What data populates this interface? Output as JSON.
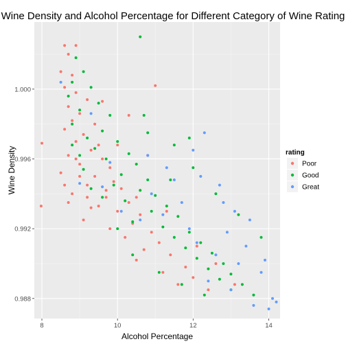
{
  "chart_data": {
    "type": "scatter",
    "title": "Wine Density and Alcohol Percentage for Different Category of Wine Rating",
    "xlabel": "Alcohol Percentage",
    "ylabel": "Wine Density",
    "xlim": [
      7.8,
      14.3
    ],
    "ylim": [
      0.98685,
      1.00385
    ],
    "x_ticks": [
      8,
      10,
      12,
      14
    ],
    "x_tick_labels": [
      "8",
      "10",
      "12",
      "14"
    ],
    "y_ticks": [
      0.988,
      0.992,
      0.996,
      1.0
    ],
    "y_tick_labels": [
      "0.988",
      "0.992",
      "0.996",
      "1.000"
    ],
    "grid": true,
    "legend": {
      "title": "rating",
      "position": "right"
    },
    "series": [
      {
        "name": "Poor",
        "color": "#F8766D",
        "points": [
          [
            8.6,
            1.0025
          ],
          [
            8.9,
            1.0025
          ],
          [
            8.7,
            1.002
          ],
          [
            8.5,
            1.001
          ],
          [
            8.8,
            1.0008
          ],
          [
            8.6,
            1.0001
          ],
          [
            8.9,
            0.9998
          ],
          [
            9.2,
            0.9994
          ],
          [
            8.7,
            0.999
          ],
          [
            9.0,
            0.9986
          ],
          [
            8.8,
            0.9982
          ],
          [
            9.4,
            0.998
          ],
          [
            8.6,
            0.9977
          ],
          [
            9.1,
            0.9974
          ],
          [
            8.9,
            0.997
          ],
          [
            9.5,
            0.9968
          ],
          [
            9.3,
            0.9965
          ],
          [
            8.7,
            0.9962
          ],
          [
            9.6,
            0.996
          ],
          [
            9.0,
            0.9957
          ],
          [
            9.8,
            0.9955
          ],
          [
            8.5,
            0.9952
          ],
          [
            9.4,
            0.995
          ],
          [
            9.9,
            0.9947
          ],
          [
            9.2,
            0.9945
          ],
          [
            10.1,
            0.9943
          ],
          [
            8.8,
            0.994
          ],
          [
            9.7,
            0.9938
          ],
          [
            10.3,
            0.9935
          ],
          [
            9.5,
            0.9933
          ],
          [
            10.0,
            0.993
          ],
          [
            10.6,
            0.9928
          ],
          [
            9.1,
            0.9925
          ],
          [
            10.4,
            0.9923
          ],
          [
            9.8,
            0.992
          ],
          [
            10.9,
            0.9918
          ],
          [
            10.2,
            0.9915
          ],
          [
            11.1,
            0.9912
          ],
          [
            10.7,
            0.9908
          ],
          [
            11.4,
            0.9905
          ],
          [
            10.5,
            0.9902
          ],
          [
            11.8,
            0.9898
          ],
          [
            11.2,
            0.9895
          ],
          [
            12.0,
            0.9892
          ],
          [
            11.6,
            0.9888
          ],
          [
            12.4,
            0.9885
          ],
          [
            8.0,
            0.9969
          ],
          [
            7.98,
            0.9933
          ],
          [
            8.7,
            0.9935
          ],
          [
            9.3,
            0.9932
          ],
          [
            10.0,
            0.9968
          ],
          [
            10.8,
            0.9962
          ],
          [
            11.0,
            1.0002
          ],
          [
            9.6,
            0.9993
          ],
          [
            10.3,
            0.9985
          ],
          [
            9.0,
            0.995
          ],
          [
            9.7,
            0.9942
          ],
          [
            10.5,
            0.9938
          ],
          [
            11.3,
            0.993
          ],
          [
            12.1,
            0.991
          ],
          [
            12.6,
            0.99
          ],
          [
            13.1,
            0.9888
          ],
          [
            8.9,
            0.996
          ],
          [
            9.2,
            0.9938
          ],
          [
            8.6,
            0.9945
          ]
        ]
      },
      {
        "name": "Good",
        "color": "#00BA38",
        "points": [
          [
            10.6,
            1.003
          ],
          [
            8.9,
            1.0018
          ],
          [
            9.1,
            1.001
          ],
          [
            8.8,
            1.0004
          ],
          [
            9.3,
            1.0001
          ],
          [
            8.7,
            0.9996
          ],
          [
            9.5,
            0.9992
          ],
          [
            9.0,
            0.9988
          ],
          [
            9.8,
            0.9985
          ],
          [
            8.8,
            0.998
          ],
          [
            9.6,
            0.9976
          ],
          [
            9.2,
            0.9972
          ],
          [
            10.0,
            0.997
          ],
          [
            9.4,
            0.9966
          ],
          [
            10.3,
            0.9963
          ],
          [
            9.7,
            0.996
          ],
          [
            10.5,
            0.9957
          ],
          [
            9.1,
            0.9954
          ],
          [
            10.1,
            0.9951
          ],
          [
            10.8,
            0.9948
          ],
          [
            9.9,
            0.9945
          ],
          [
            10.6,
            0.9942
          ],
          [
            11.0,
            0.9939
          ],
          [
            10.2,
            0.9936
          ],
          [
            11.3,
            0.9933
          ],
          [
            10.9,
            0.993
          ],
          [
            11.6,
            0.9927
          ],
          [
            10.4,
            0.9924
          ],
          [
            11.2,
            0.9921
          ],
          [
            11.9,
            0.9918
          ],
          [
            11.5,
            0.9915
          ],
          [
            12.2,
            0.9912
          ],
          [
            11.8,
            0.9909
          ],
          [
            12.5,
            0.9906
          ],
          [
            12.1,
            0.9903
          ],
          [
            12.8,
            0.99
          ],
          [
            12.4,
            0.9897
          ],
          [
            13.0,
            0.9894
          ],
          [
            12.7,
            0.9891
          ],
          [
            13.3,
            0.9888
          ],
          [
            13.0,
            0.9885
          ],
          [
            13.6,
            0.9882
          ],
          [
            11.9,
            0.9972
          ],
          [
            11.5,
            0.9968
          ],
          [
            10.8,
            0.9975
          ],
          [
            12.0,
            0.9955
          ],
          [
            12.6,
            0.994
          ],
          [
            13.2,
            0.9928
          ],
          [
            13.8,
            0.9915
          ],
          [
            9.3,
            0.9943
          ],
          [
            9.6,
            0.9938
          ],
          [
            10.0,
            0.992
          ],
          [
            10.4,
            0.9905
          ],
          [
            11.1,
            0.9895
          ],
          [
            11.7,
            0.9888
          ],
          [
            12.3,
            0.9882
          ],
          [
            8.8,
            0.9968
          ],
          [
            9.0,
            0.9962
          ],
          [
            10.7,
            0.9985
          ],
          [
            11.4,
            0.9948
          ]
        ]
      },
      {
        "name": "Great",
        "color": "#619CFF",
        "points": [
          [
            8.5,
            1.0004
          ],
          [
            9.3,
            0.9986
          ],
          [
            10.8,
            0.9962
          ],
          [
            11.3,
            0.9955
          ],
          [
            12.2,
            0.995
          ],
          [
            12.7,
            0.9945
          ],
          [
            13.1,
            0.993
          ],
          [
            13.5,
            0.9925
          ],
          [
            12.9,
            0.9918
          ],
          [
            13.4,
            0.991
          ],
          [
            12.1,
            0.9912
          ],
          [
            12.6,
            0.9905
          ],
          [
            13.2,
            0.99
          ],
          [
            13.8,
            0.9895
          ],
          [
            14.1,
            0.988
          ],
          [
            14.0,
            0.9874
          ],
          [
            13.6,
            0.9876
          ],
          [
            12.4,
            0.989
          ],
          [
            11.7,
            0.9935
          ],
          [
            11.2,
            0.9928
          ],
          [
            10.6,
            0.9925
          ],
          [
            10.1,
            0.993
          ],
          [
            9.6,
            0.9944
          ],
          [
            9.0,
            0.9946
          ],
          [
            12.0,
            0.9965
          ],
          [
            11.5,
            0.9948
          ],
          [
            12.8,
            0.9935
          ],
          [
            13.9,
            0.9902
          ],
          [
            14.2,
            0.9878
          ],
          [
            12.3,
            0.9975
          ],
          [
            10.9,
            0.994
          ],
          [
            11.9,
            0.992
          ],
          [
            13.0,
            0.9885
          ],
          [
            9.8,
            0.9958
          ]
        ]
      }
    ]
  }
}
